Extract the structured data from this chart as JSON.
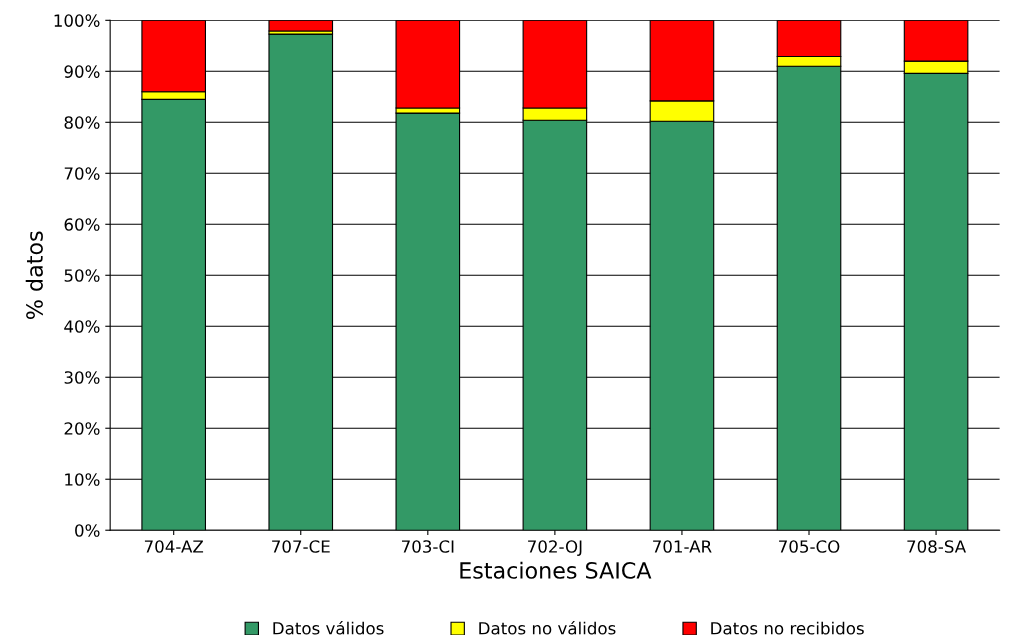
{
  "chart_data": {
    "type": "bar",
    "stacked": true,
    "xlabel": "Estaciones SAICA",
    "ylabel": "% datos",
    "categories": [
      "704-AZ",
      "707-CE",
      "703-CI",
      "702-OJ",
      "701-AR",
      "705-CO",
      "708-SA"
    ],
    "series": [
      {
        "name": "Datos válidos",
        "color": "#339966",
        "values": [
          84.5,
          97.3,
          81.8,
          80.4,
          80.2,
          91.0,
          89.6
        ]
      },
      {
        "name": "Datos no válidos",
        "color": "#ffff00",
        "values": [
          1.5,
          0.6,
          1.0,
          2.4,
          4.0,
          1.9,
          2.4
        ]
      },
      {
        "name": "Datos no recibidos",
        "color": "#ff0000",
        "values": [
          14.0,
          2.1,
          17.2,
          17.2,
          15.8,
          7.1,
          8.0
        ]
      }
    ],
    "ylim": [
      0,
      100
    ],
    "yticks": [
      {
        "value": 0,
        "label": "0%"
      },
      {
        "value": 10,
        "label": "10%"
      },
      {
        "value": 20,
        "label": "20%"
      },
      {
        "value": 30,
        "label": "30%"
      },
      {
        "value": 40,
        "label": "40%"
      },
      {
        "value": 50,
        "label": "50%"
      },
      {
        "value": 60,
        "label": "60%"
      },
      {
        "value": 70,
        "label": "70%"
      },
      {
        "value": 80,
        "label": "80%"
      },
      {
        "value": 90,
        "label": "90%"
      },
      {
        "value": 100,
        "label": "100%"
      }
    ],
    "grid": "y",
    "legend": "bottom"
  }
}
